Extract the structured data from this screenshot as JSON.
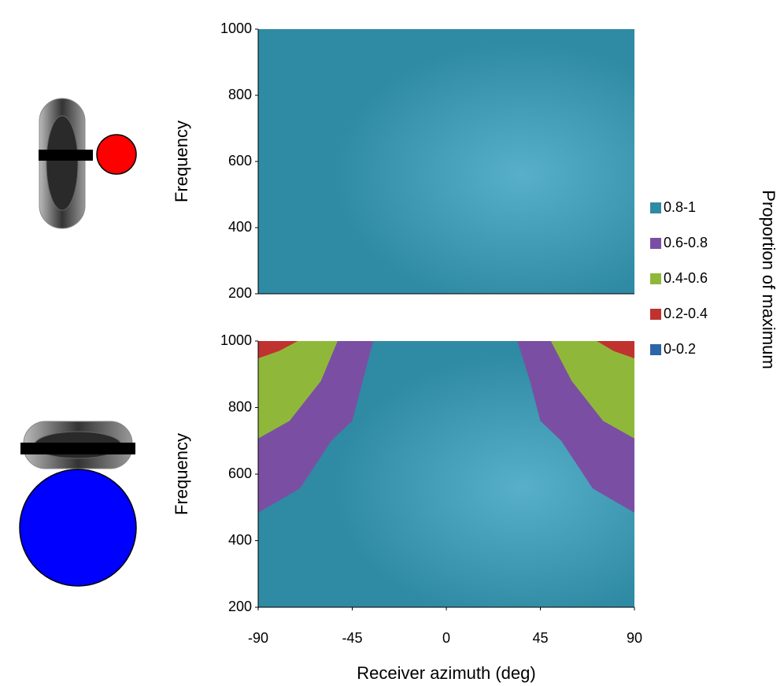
{
  "chart_data": [
    {
      "type": "contour",
      "ylabel": "Frequency",
      "color": "#2f8aa3",
      "xlim": [
        -90,
        90
      ],
      "ylim": [
        200,
        1000
      ],
      "yticks": [
        200,
        400,
        600,
        800,
        1000
      ]
    },
    {
      "type": "contour",
      "ylabel": "Frequency",
      "xlabel": "Receiver azimuth (deg)",
      "xlim": [
        -90,
        90
      ],
      "ylim": [
        200,
        1000
      ],
      "yticks": [
        200,
        400,
        600,
        800,
        1000
      ],
      "xticks": [
        -90,
        -45,
        0,
        45,
        90
      ],
      "legend_title": "Proportion of maximum",
      "series": [
        {
          "name": "0.8-1",
          "color": "#2f8aa3",
          "regions": []
        },
        {
          "name": "0.6-0.8",
          "color": "#7a4fa3",
          "regions": [
            {
              "x": [
                -90,
                -35,
                -40,
                -45,
                -55,
                -70,
                -90
              ],
              "y": [
                1000,
                1000,
                880,
                760,
                700,
                557,
                484
              ]
            },
            {
              "x": [
                90,
                34,
                40,
                45,
                55,
                70,
                90
              ],
              "y": [
                1000,
                1000,
                880,
                760,
                700,
                557,
                484
              ]
            }
          ]
        },
        {
          "name": "0.4-0.6",
          "color": "#8fb83b",
          "regions": [
            {
              "x": [
                -90,
                -52,
                -60,
                -75,
                -90
              ],
              "y": [
                1000,
                1000,
                880,
                760,
                707
              ]
            },
            {
              "x": [
                90,
                50,
                60,
                75,
                90
              ],
              "y": [
                1000,
                1000,
                880,
                760,
                707
              ]
            }
          ]
        },
        {
          "name": "0.2-0.4",
          "color": "#c0322f",
          "regions": [
            {
              "x": [
                -90,
                -71,
                -80,
                -90
              ],
              "y": [
                1000,
                1000,
                970,
                948
              ]
            },
            {
              "x": [
                90,
                72,
                80,
                90
              ],
              "y": [
                1000,
                1000,
                970,
                948
              ]
            }
          ]
        },
        {
          "name": "0-0.2",
          "color": "#2c65a8",
          "regions": []
        }
      ]
    }
  ]
}
